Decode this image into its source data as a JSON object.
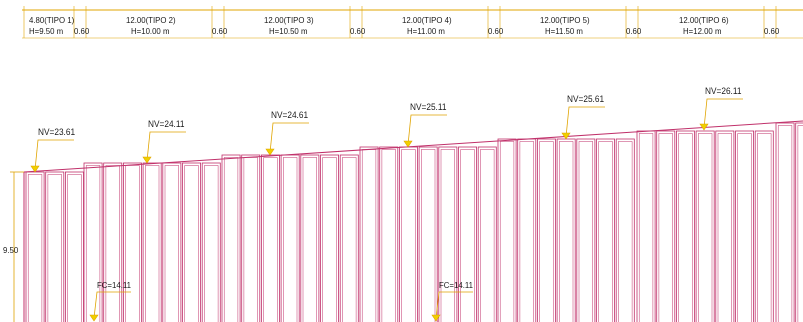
{
  "segments": [
    {
      "label": "4.80(TIPO 1)",
      "height_label": "H=9.50 m",
      "gap_label": "0.60"
    },
    {
      "label": "12.00(TIPO 2)",
      "height_label": "H=10.00 m",
      "gap_label": "0.60"
    },
    {
      "label": "12.00(TIPO 3)",
      "height_label": "H=10.50 m",
      "gap_label": "0.60"
    },
    {
      "label": "12.00(TIPO 4)",
      "height_label": "H=11.00 m",
      "gap_label": "0.60"
    },
    {
      "label": "12.00(TIPO 5)",
      "height_label": "H=11.50 m",
      "gap_label": "0.60"
    },
    {
      "label": "12.00(TIPO 6)",
      "height_label": "H=12.00 m",
      "gap_label": "0.60"
    }
  ],
  "levels": [
    {
      "label": "NV=23.61"
    },
    {
      "label": "NV=24.11"
    },
    {
      "label": "NV=24.61"
    },
    {
      "label": "NV=25.11"
    },
    {
      "label": "NV=25.61"
    },
    {
      "label": "NV=26.11"
    }
  ],
  "wall_height_label": "9.50",
  "foundation_levels": [
    {
      "label": "FC=14.11"
    },
    {
      "label": "FC=14.11"
    }
  ],
  "colors": {
    "panel_outline": "#c0306a",
    "dimension_line": "#e0a400",
    "marker": "#f0d000",
    "text": "#1a1a1a"
  }
}
